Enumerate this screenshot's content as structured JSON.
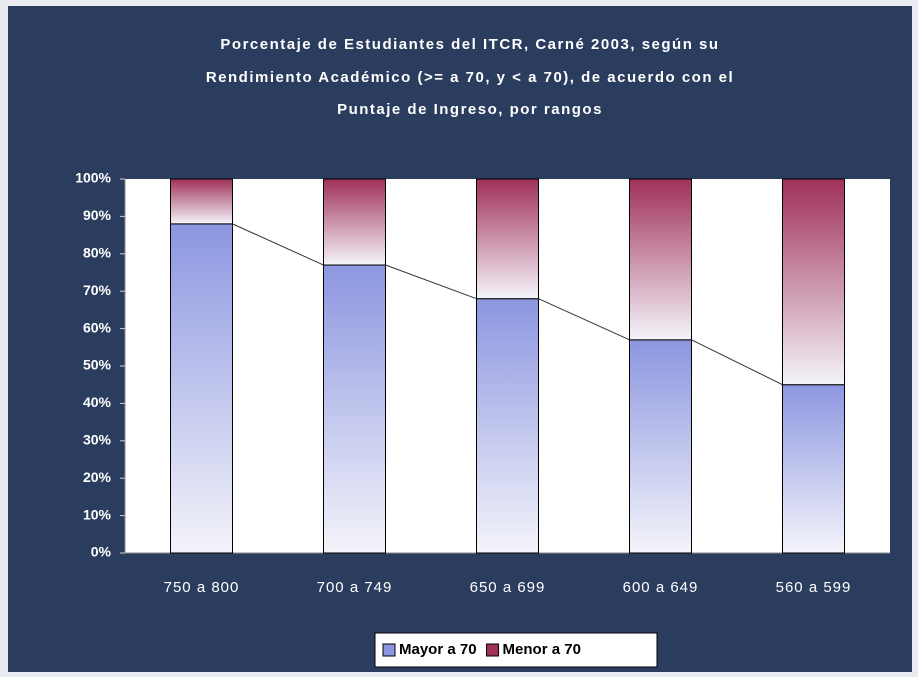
{
  "chart_data": {
    "type": "stacked_bar",
    "title": [
      "Porcentaje de Estudiantes del ITCR, Carné 2003, según su",
      "Rendimiento Académico (>= a 70, y < a 70), de acuerdo con el",
      "Puntaje de Ingreso, por rangos"
    ],
    "categories": [
      "750 a 800",
      "700 a 749",
      "650 a 699",
      "600 a 649",
      "560 a 599"
    ],
    "series": [
      {
        "name": "Mayor a 70",
        "color": "#8c96e0",
        "values": [
          88,
          77,
          68,
          57,
          45
        ]
      },
      {
        "name": "Menor a 70",
        "color": "#a0305a",
        "values": [
          12,
          23,
          32,
          43,
          55
        ]
      }
    ],
    "ylim": [
      0,
      100
    ],
    "yticks": [
      {
        "value": 0,
        "label": "0%"
      },
      {
        "value": 10,
        "label": "10%"
      },
      {
        "value": 20,
        "label": "20%"
      },
      {
        "value": 30,
        "label": "30%"
      },
      {
        "value": 40,
        "label": "40%"
      },
      {
        "value": 50,
        "label": "50%"
      },
      {
        "value": 60,
        "label": "60%"
      },
      {
        "value": 70,
        "label": "70%"
      },
      {
        "value": 80,
        "label": "80%"
      },
      {
        "value": 90,
        "label": "90%"
      },
      {
        "value": 100,
        "label": "100%"
      }
    ],
    "grid": false,
    "legend": "bottom"
  }
}
